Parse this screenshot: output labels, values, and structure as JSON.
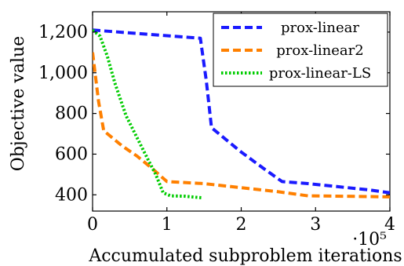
{
  "chart_data": {
    "type": "line",
    "xlabel": "Accumulated subproblem iterations",
    "ylabel": "Objective value",
    "xlim": [
      0,
      400000
    ],
    "ylim": [
      320,
      1300
    ],
    "x_ticks": [
      0,
      100000,
      200000,
      300000,
      400000
    ],
    "x_tick_labels": [
      "0",
      "1",
      "2",
      "3",
      "4"
    ],
    "x_scale_label": "·10⁵",
    "y_ticks": [
      400,
      600,
      800,
      1000,
      1200
    ],
    "y_tick_labels": [
      "400",
      "600",
      "800",
      "1,000",
      "1,200"
    ],
    "legend_position": "top-right",
    "grid": false,
    "series": [
      {
        "name": "prox-linear",
        "color": "#1a1aff",
        "style": "dashed",
        "x": [
          0,
          145000,
          153000,
          160000,
          180000,
          200000,
          230000,
          255000,
          290000,
          330000,
          370000,
          400000
        ],
        "y": [
          1210,
          1170,
          960,
          730,
          670,
          610,
          530,
          465,
          455,
          440,
          425,
          410
        ]
      },
      {
        "name": "prox-linear2",
        "color": "#ff8000",
        "style": "dashed",
        "x": [
          0,
          8000,
          15000,
          40000,
          60000,
          80000,
          100000,
          150000,
          200000,
          250000,
          290000,
          340000,
          400000
        ],
        "y": [
          1100,
          860,
          715,
          640,
          590,
          530,
          465,
          455,
          435,
          415,
          395,
          393,
          390
        ]
      },
      {
        "name": "prox-linear-LS",
        "color": "#00cc00",
        "style": "dotted",
        "x": [
          0,
          10000,
          20000,
          30000,
          45000,
          60000,
          75000,
          85000,
          95000,
          105000,
          125000,
          148000
        ],
        "y": [
          1210,
          1180,
          1080,
          950,
          790,
          680,
          570,
          500,
          410,
          395,
          393,
          385
        ]
      }
    ]
  }
}
